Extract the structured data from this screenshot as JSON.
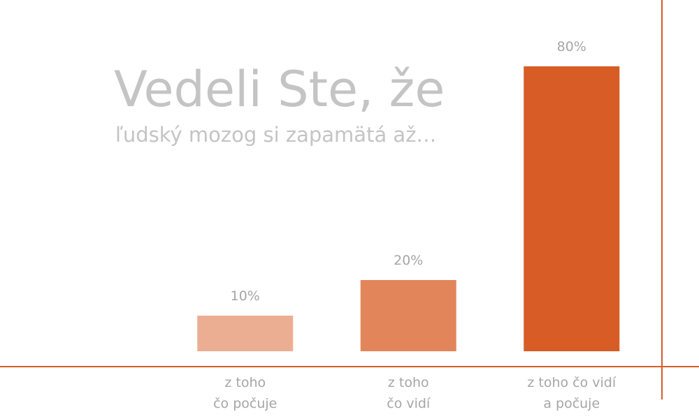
{
  "chart_data": {
    "type": "bar",
    "title": "Vedeli Ste, že",
    "subtitle": "ľudský mozog si zapamätá až…",
    "categories": [
      "z toho\nčo počuje",
      "z toho\nčo vidí",
      "z toho čo vidí\na počuje"
    ],
    "values": [
      10,
      20,
      80
    ],
    "value_labels": [
      "10%",
      "20%",
      "80%"
    ],
    "colors": [
      "#ecae92",
      "#e2855b",
      "#d75c25"
    ],
    "ylim": [
      0,
      80
    ]
  }
}
